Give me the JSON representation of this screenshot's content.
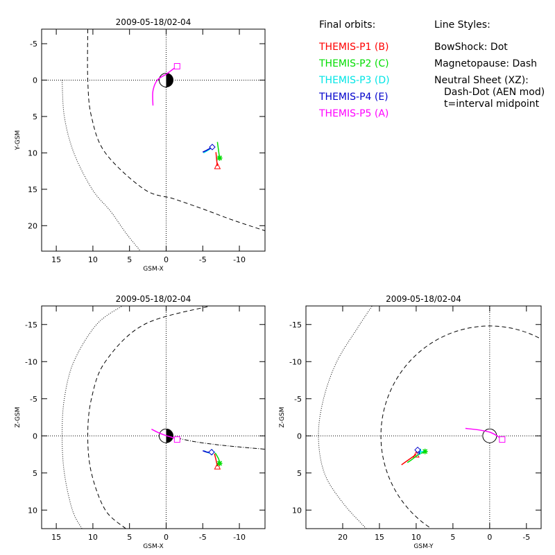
{
  "chart_data": [
    {
      "type": "scatter",
      "title": "2009-05-18/02-04",
      "xlabel": "GSM-X",
      "ylabel": "Y-GSM",
      "xlim": [
        17,
        -13.5
      ],
      "ylim": [
        -7,
        23.5
      ],
      "xticks": [
        15,
        10,
        5,
        0,
        -5,
        -10
      ],
      "xticklabels": [
        "15",
        "10",
        "5",
        "0",
        "-5",
        "-10"
      ],
      "yticks": [
        -5,
        0,
        5,
        10,
        15,
        20
      ],
      "yticklabels": [
        "-5",
        "0",
        "5",
        "10",
        "15",
        "20"
      ],
      "grid": "dotted lines at origin",
      "earth_at": [
        0,
        0
      ],
      "bow_shock": [
        [
          14.2,
          0
        ],
        [
          13.9,
          5
        ],
        [
          12.6,
          10
        ],
        [
          10.1,
          15
        ],
        [
          7.6,
          18
        ],
        [
          5.5,
          21
        ],
        [
          3.5,
          23.5
        ]
      ],
      "magnetopause": [
        [
          10.7,
          -7
        ],
        [
          10.7,
          0
        ],
        [
          10.2,
          5
        ],
        [
          8.3,
          10
        ],
        [
          3,
          15
        ],
        [
          -1,
          16.3
        ],
        [
          -5,
          17.7
        ],
        [
          -9,
          19.2
        ],
        [
          -13.5,
          20.7
        ]
      ],
      "neutral_sheet": [],
      "series": [
        {
          "name": "THEMIS-P1 (B)",
          "color": "#ff0000",
          "symbol": "triangle",
          "points": [
            [
              -6.8,
              9.9
            ],
            [
              -6.9,
              11
            ],
            [
              -7.0,
              11.8
            ]
          ]
        },
        {
          "name": "THEMIS-P2 (C)",
          "color": "#00dd00",
          "symbol": "asterisk",
          "points": [
            [
              -7.0,
              8.5
            ],
            [
              -7.2,
              10
            ],
            [
              -7.3,
              10.7
            ]
          ]
        },
        {
          "name": "THEMIS-P3 (D)",
          "color": "#00e5e5",
          "symbol": "plus",
          "points": [
            [
              -5.1,
              10
            ],
            [
              -5.8,
              9.6
            ],
            [
              -6.3,
              9.2
            ]
          ]
        },
        {
          "name": "THEMIS-P4 (E)",
          "color": "#0000cc",
          "symbol": "diamond",
          "points": [
            [
              -5.0,
              9.9
            ],
            [
              -5.6,
              9.6
            ],
            [
              -6.3,
              9.2
            ]
          ]
        },
        {
          "name": "THEMIS-P5 (A)",
          "color": "#ff00ff",
          "symbol": "square",
          "points": [
            [
              1.8,
              3.5
            ],
            [
              1.8,
              1.5
            ],
            [
              1.2,
              0
            ],
            [
              0,
              -0.8
            ],
            [
              -0.8,
              -1.4
            ],
            [
              -1.5,
              -1.9
            ]
          ]
        }
      ]
    },
    {
      "type": "scatter",
      "title": "2009-05-18/02-04",
      "xlabel": "GSM-X",
      "ylabel": "Z-GSM",
      "xlim": [
        17,
        -13.5
      ],
      "ylim": [
        -17.5,
        12.5
      ],
      "xticks": [
        15,
        10,
        5,
        0,
        -5,
        -10
      ],
      "xticklabels": [
        "15",
        "10",
        "5",
        "0",
        "-5",
        "-10"
      ],
      "yticks": [
        -15,
        -10,
        -5,
        0,
        5,
        10
      ],
      "yticklabels": [
        "-15",
        "-10",
        "-5",
        "0",
        "5",
        "10"
      ],
      "grid": "dotted lines at origin",
      "earth_at": [
        0,
        0
      ],
      "bow_shock": [
        [
          11.5,
          12.5
        ],
        [
          12.8,
          10
        ],
        [
          13.9,
          5
        ],
        [
          14.2,
          0
        ],
        [
          13.9,
          -5
        ],
        [
          12.6,
          -10
        ],
        [
          9.5,
          -15
        ],
        [
          6,
          -17.5
        ]
      ],
      "magnetopause": [
        [
          5.5,
          12.5
        ],
        [
          8.3,
          10
        ],
        [
          10.2,
          5
        ],
        [
          10.7,
          0
        ],
        [
          10.2,
          -5
        ],
        [
          8.3,
          -10
        ],
        [
          3,
          -15
        ],
        [
          -6,
          -17.5
        ]
      ],
      "neutral_sheet": [
        [
          -1.5,
          0.3
        ],
        [
          -4,
          0.8
        ],
        [
          -7,
          1.2
        ],
        [
          -10,
          1.5
        ],
        [
          -13.5,
          1.8
        ]
      ],
      "series": [
        {
          "name": "THEMIS-P1 (B)",
          "color": "#ff0000",
          "symbol": "triangle",
          "points": [
            [
              -6.6,
              2.4
            ],
            [
              -6.8,
              3.2
            ],
            [
              -7.0,
              4.1
            ]
          ]
        },
        {
          "name": "THEMIS-P2 (C)",
          "color": "#00dd00",
          "symbol": "asterisk",
          "points": [
            [
              -6.7,
              2.3
            ],
            [
              -7.0,
              2.8
            ],
            [
              -7.2,
              3.2
            ],
            [
              -7.3,
              3.7
            ]
          ]
        },
        {
          "name": "THEMIS-P3 (D)",
          "color": "#00e5e5",
          "symbol": "plus",
          "points": [
            [
              -5.2,
              2.0
            ],
            [
              -5.8,
              2.3
            ],
            [
              -6.3,
              2.2
            ]
          ]
        },
        {
          "name": "THEMIS-P4 (E)",
          "color": "#0000cc",
          "symbol": "diamond",
          "points": [
            [
              -5.0,
              2.0
            ],
            [
              -5.6,
              2.2
            ],
            [
              -6.2,
              2.2
            ]
          ]
        },
        {
          "name": "THEMIS-P5 (A)",
          "color": "#ff00ff",
          "symbol": "square",
          "points": [
            [
              2.0,
              -0.9
            ],
            [
              1.2,
              -0.5
            ],
            [
              0.2,
              -0.1
            ],
            [
              -0.8,
              0.2
            ],
            [
              -1.5,
              0.5
            ]
          ]
        }
      ]
    },
    {
      "type": "scatter",
      "title": "2009-05-18/02-04",
      "xlabel": "GSM-Y",
      "ylabel": "Z-GSM",
      "xlim": [
        25,
        -7
      ],
      "ylim": [
        -17.5,
        12.5
      ],
      "xticks": [
        20,
        15,
        10,
        5,
        0,
        -5
      ],
      "xticklabels": [
        "20",
        "15",
        "10",
        "5",
        "0",
        "-5"
      ],
      "yticks": [
        -15,
        -10,
        -5,
        0,
        5,
        10
      ],
      "yticklabels": [
        "-15",
        "-10",
        "-5",
        "0",
        "5",
        "10"
      ],
      "grid": "dotted lines at origin",
      "earth_at": [
        0,
        0
      ],
      "bow_shock": [
        [
          16.8,
          12.5
        ],
        [
          20,
          9
        ],
        [
          22.5,
          5
        ],
        [
          23.3,
          0
        ],
        [
          22.6,
          -5
        ],
        [
          20.8,
          -10
        ],
        [
          18,
          -14.5
        ],
        [
          16,
          -17.5
        ]
      ],
      "magnetopause": "circle centre (0,0) radius 14.8",
      "neutral_sheet": [],
      "series": [
        {
          "name": "THEMIS-P1 (B)",
          "color": "#ff0000",
          "symbol": "triangle",
          "points": [
            [
              12,
              3.9
            ],
            [
              11,
              3.2
            ],
            [
              10,
              2.5
            ]
          ]
        },
        {
          "name": "THEMIS-P2 (C)",
          "color": "#00dd00",
          "symbol": "asterisk",
          "points": [
            [
              11.2,
              3.6
            ],
            [
              10.6,
              3.2
            ],
            [
              9.8,
              2.6
            ],
            [
              8.8,
              2.1
            ]
          ]
        },
        {
          "name": "THEMIS-P3 (D)",
          "color": "#00e5e5",
          "symbol": "plus",
          "points": [
            [
              9.8,
              2.6
            ],
            [
              9.6,
              2.3
            ],
            [
              9.4,
              2.1
            ]
          ]
        },
        {
          "name": "THEMIS-P4 (E)",
          "color": "#0000cc",
          "symbol": "diamond",
          "points": [
            [
              9.6,
              2.5
            ],
            [
              9.6,
              2.2
            ],
            [
              9.8,
              1.9
            ]
          ]
        },
        {
          "name": "THEMIS-P5 (A)",
          "color": "#ff00ff",
          "symbol": "square",
          "points": [
            [
              3.3,
              -1.0
            ],
            [
              1.5,
              -0.8
            ],
            [
              0,
              -0.5
            ],
            [
              -1.0,
              0
            ],
            [
              -1.7,
              0.5
            ]
          ]
        }
      ]
    }
  ],
  "legend": {
    "header": "Final orbits:",
    "entries": [
      {
        "label": "THEMIS-P1 (B)",
        "color": "#ff0000"
      },
      {
        "label": "THEMIS-P2 (C)",
        "color": "#00dd00"
      },
      {
        "label": "THEMIS-P3 (D)",
        "color": "#00e5e5"
      },
      {
        "label": "THEMIS-P4 (E)",
        "color": "#0000cc"
      },
      {
        "label": "THEMIS-P5 (A)",
        "color": "#ff00ff"
      }
    ]
  },
  "line_styles": {
    "header": "Line Styles:",
    "bowshock": "BowShock: Dot",
    "magnetopause": "Magnetopause: Dash",
    "neutral": "Neutral Sheet (XZ):",
    "neutral_detail": "Dash-Dot (AEN mod)",
    "midpoint": "t=interval midpoint"
  }
}
